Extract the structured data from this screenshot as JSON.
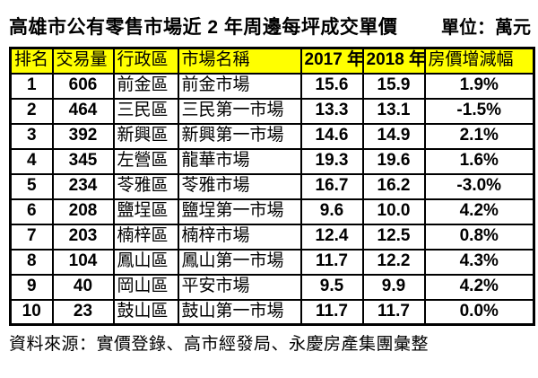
{
  "chart_data": {
    "type": "table",
    "title": "高雄市公有零售市場近 2 年周邊每坪成交單價",
    "unit_label": "單位：萬元",
    "columns": [
      "排名",
      "交易量",
      "行政區",
      "市場名稱",
      "2017 年",
      "2018 年",
      "房價增減幅"
    ],
    "rows": [
      [
        "1",
        "606",
        "前金區",
        "前金市場",
        "15.6",
        "15.9",
        "1.9%"
      ],
      [
        "2",
        "464",
        "三民區",
        "三民第一市場",
        "13.3",
        "13.1",
        "-1.5%"
      ],
      [
        "3",
        "392",
        "新興區",
        "新興第一市場",
        "14.6",
        "14.9",
        "2.1%"
      ],
      [
        "4",
        "345",
        "左營區",
        "龍華市場",
        "19.3",
        "19.6",
        "1.6%"
      ],
      [
        "5",
        "234",
        "苓雅區",
        "苓雅市場",
        "16.7",
        "16.2",
        "-3.0%"
      ],
      [
        "6",
        "208",
        "鹽埕區",
        "鹽埕第一市場",
        "9.6",
        "10.0",
        "4.2%"
      ],
      [
        "7",
        "203",
        "楠梓區",
        "楠梓市場",
        "12.4",
        "12.5",
        "0.8%"
      ],
      [
        "8",
        "104",
        "鳳山區",
        "鳳山第一市場",
        "11.7",
        "12.2",
        "4.3%"
      ],
      [
        "9",
        "40",
        "岡山區",
        "平安市場",
        "9.5",
        "9.9",
        "4.2%"
      ],
      [
        "10",
        "23",
        "鼓山區",
        "鼓山第一市場",
        "11.7",
        "11.7",
        "0.0%"
      ]
    ],
    "source": "資料來源：實價登錄、高市經發局、永慶房產集團彙整"
  },
  "colors": {
    "header_bg": "#FFFF00",
    "border": "#000000",
    "text": "#000000",
    "background": "#FFFFFF"
  }
}
